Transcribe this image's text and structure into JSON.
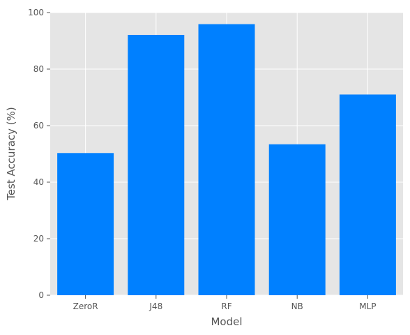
{
  "chart_data": {
    "type": "bar",
    "title": "",
    "xlabel": "Model",
    "ylabel": "Test Accuracy (%)",
    "categories": [
      "ZeroR",
      "J48",
      "RF",
      "NB",
      "MLP"
    ],
    "values": [
      50.3,
      92.1,
      95.9,
      53.4,
      71.0
    ],
    "ylim": [
      0,
      100
    ],
    "yticks": [
      0,
      20,
      40,
      60,
      80,
      100
    ],
    "grid": true,
    "legend": "none",
    "colors": {
      "bar": "#0080FF",
      "plot_background": "#E5E5E5",
      "grid": "#FFFFFF",
      "text": "#555555"
    }
  }
}
